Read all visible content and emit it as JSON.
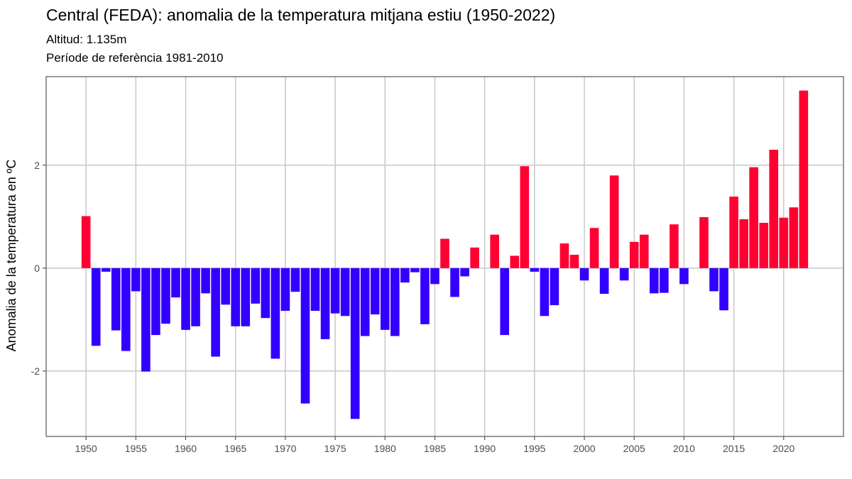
{
  "chart_data": {
    "type": "bar",
    "title": "Central (FEDA): anomalia de la temperatura mitjana estiu (1950-2022)",
    "subtitle_lines": [
      "Altitud: 1.135m",
      "Període de referència 1981-2010"
    ],
    "xlabel": "",
    "ylabel": "Anomalia de la temperatura en ºC",
    "xlim": [
      1946,
      2026
    ],
    "ylim": [
      -3.27,
      3.72
    ],
    "x_ticks": [
      1950,
      1955,
      1960,
      1965,
      1970,
      1975,
      1980,
      1985,
      1990,
      1995,
      2000,
      2005,
      2010,
      2015,
      2020
    ],
    "y_ticks": [
      -2,
      0,
      2
    ],
    "grid": true,
    "legend": "none",
    "colors": {
      "positive": "#FF0033",
      "negative": "#3300FF",
      "grid": "#C8C8C8",
      "panel_border": "#555555"
    },
    "x": [
      1950,
      1951,
      1952,
      1953,
      1954,
      1955,
      1956,
      1957,
      1958,
      1959,
      1960,
      1961,
      1962,
      1963,
      1964,
      1965,
      1966,
      1967,
      1968,
      1969,
      1970,
      1971,
      1972,
      1973,
      1974,
      1975,
      1976,
      1977,
      1978,
      1979,
      1980,
      1981,
      1982,
      1983,
      1984,
      1985,
      1986,
      1987,
      1988,
      1989,
      1990,
      1991,
      1992,
      1993,
      1994,
      1995,
      1996,
      1997,
      1998,
      1999,
      2000,
      2001,
      2002,
      2003,
      2004,
      2005,
      2006,
      2007,
      2008,
      2009,
      2010,
      2011,
      2012,
      2013,
      2014,
      2015,
      2016,
      2017,
      2018,
      2019,
      2020,
      2021,
      2022
    ],
    "values": [
      1.01,
      -1.51,
      -0.07,
      -1.21,
      -1.61,
      -0.45,
      -2.01,
      -1.3,
      -1.08,
      -0.57,
      -1.2,
      -1.13,
      -0.49,
      -1.72,
      -0.71,
      -1.13,
      -1.13,
      -0.69,
      -0.97,
      -1.76,
      -0.83,
      -0.46,
      -2.63,
      -0.83,
      -1.38,
      -0.88,
      -0.93,
      -2.93,
      -1.32,
      -0.9,
      -1.2,
      -1.32,
      -0.28,
      -0.08,
      -1.09,
      -0.31,
      0.57,
      -0.56,
      -0.16,
      0.4,
      0,
      0.65,
      -1.3,
      0.24,
      1.98,
      -0.07,
      -0.93,
      -0.72,
      0.48,
      0.26,
      -0.24,
      0.78,
      -0.5,
      1.8,
      -0.24,
      0.51,
      0.65,
      -0.49,
      -0.48,
      0.85,
      -0.31,
      0,
      0.99,
      -0.45,
      -0.82,
      1.39,
      0.95,
      1.96,
      0.88,
      2.3,
      0.98,
      1.18,
      3.45
    ]
  }
}
